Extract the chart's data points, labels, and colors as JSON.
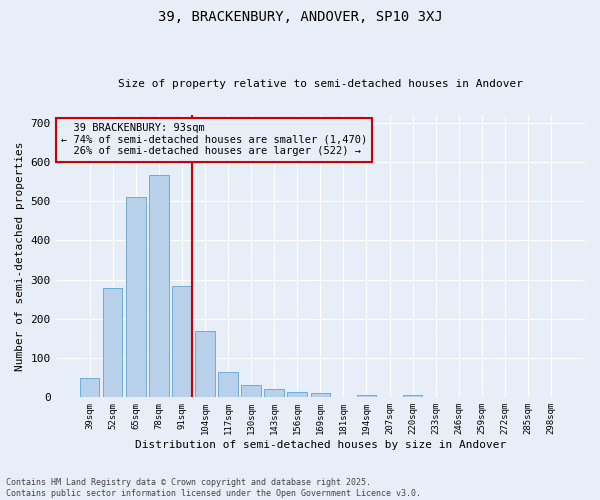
{
  "title1": "39, BRACKENBURY, ANDOVER, SP10 3XJ",
  "title2": "Size of property relative to semi-detached houses in Andover",
  "xlabel": "Distribution of semi-detached houses by size in Andover",
  "ylabel": "Number of semi-detached properties",
  "bar_labels": [
    "39sqm",
    "52sqm",
    "65sqm",
    "78sqm",
    "91sqm",
    "104sqm",
    "117sqm",
    "130sqm",
    "143sqm",
    "156sqm",
    "169sqm",
    "181sqm",
    "194sqm",
    "207sqm",
    "220sqm",
    "233sqm",
    "246sqm",
    "259sqm",
    "272sqm",
    "285sqm",
    "298sqm"
  ],
  "bar_values": [
    50,
    278,
    510,
    567,
    283,
    170,
    65,
    32,
    22,
    13,
    12,
    0,
    6,
    0,
    5,
    0,
    0,
    0,
    0,
    0,
    0
  ],
  "bar_color": "#b8d0ea",
  "bar_edge_color": "#6aaed6",
  "property_line_bar_idx": 4,
  "property_size": "93sqm",
  "property_name": "39 BRACKENBURY",
  "pct_smaller": 74,
  "count_smaller": 1470,
  "pct_larger": 26,
  "count_larger": 522,
  "annotation_line_color": "#cc0000",
  "ylim": [
    0,
    720
  ],
  "yticks": [
    0,
    100,
    200,
    300,
    400,
    500,
    600,
    700
  ],
  "background_color": "#e8eef8",
  "grid_color": "#ffffff",
  "footer1": "Contains HM Land Registry data © Crown copyright and database right 2025.",
  "footer2": "Contains public sector information licensed under the Open Government Licence v3.0."
}
